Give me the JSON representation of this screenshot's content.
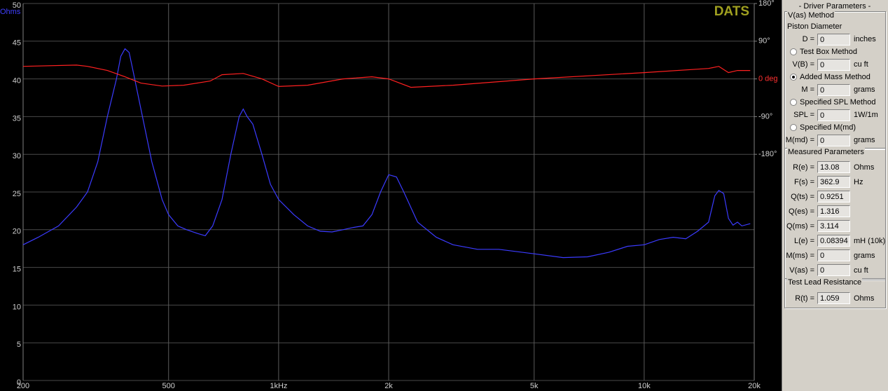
{
  "chart_data": {
    "type": "line",
    "watermark": "DATS",
    "ylabel": "Ohms",
    "log_x": true,
    "grid": true,
    "xlim": [
      200,
      20000
    ],
    "xticks": [
      200,
      500,
      {
        "value": 1000,
        "label": "1kHz"
      },
      {
        "value": 2000,
        "label": "2k"
      },
      {
        "value": 5000,
        "label": "5k"
      },
      {
        "value": 10000,
        "label": "10k"
      },
      {
        "value": 20000,
        "label": "20k"
      }
    ],
    "ylim": [
      0,
      50
    ],
    "yticks": [
      0,
      5,
      10,
      15,
      20,
      25,
      30,
      35,
      40,
      45,
      50
    ],
    "y2lim": [
      -720,
      180
    ],
    "y2ticks": [
      {
        "value": 180,
        "label": "180°"
      },
      {
        "value": 90,
        "label": "90°"
      },
      {
        "value": 0,
        "label": "0 deg",
        "color": "#ff3030"
      },
      {
        "value": -90,
        "label": "-90°"
      },
      {
        "value": -180,
        "label": "-180°"
      }
    ],
    "series": [
      {
        "color": "#3b3bff",
        "axis": "y",
        "x": [
          200,
          220,
          250,
          280,
          300,
          320,
          340,
          360,
          370,
          380,
          390,
          400,
          420,
          450,
          480,
          500,
          530,
          560,
          600,
          630,
          660,
          700,
          740,
          780,
          800,
          820,
          850,
          900,
          950,
          1000,
          1100,
          1200,
          1300,
          1400,
          1500,
          1600,
          1700,
          1800,
          1900,
          2000,
          2100,
          2200,
          2400,
          2700,
          3000,
          3500,
          4000,
          5000,
          6000,
          7000,
          8000,
          9000,
          10000,
          11000,
          12000,
          13000,
          14000,
          15000,
          15600,
          16000,
          16500,
          17000,
          17500,
          18000,
          18500,
          19500
        ],
        "values": [
          18,
          19,
          20.5,
          23,
          25,
          29,
          35,
          40,
          43,
          44,
          43.5,
          41,
          36,
          29,
          24,
          22,
          20.5,
          20,
          19.5,
          19.2,
          20.5,
          24,
          30,
          35,
          36,
          35,
          34,
          30,
          26,
          24,
          22,
          20.5,
          19.8,
          19.7,
          20,
          20.3,
          20.5,
          22,
          25,
          27.3,
          27,
          25,
          21,
          19,
          18,
          17.4,
          17.4,
          16.8,
          16.3,
          16.4,
          17,
          17.8,
          18,
          18.7,
          19,
          18.8,
          19.8,
          21,
          24.5,
          25.2,
          24.8,
          21.5,
          20.6,
          21,
          20.5,
          20.8
        ]
      },
      {
        "color": "#ff2020",
        "axis": "y2",
        "x": [
          200,
          280,
          300,
          340,
          380,
          420,
          480,
          550,
          650,
          700,
          800,
          900,
          1000,
          1200,
          1500,
          1800,
          2000,
          2300,
          3000,
          5000,
          10000,
          15000,
          16000,
          17000,
          18000,
          19500
        ],
        "values": [
          30,
          33,
          30,
          20,
          5,
          -10,
          -17,
          -15,
          -5,
          10,
          13,
          0,
          -18,
          -15,
          0,
          5,
          0,
          -20,
          -15,
          0,
          15,
          25,
          30,
          15,
          20,
          20
        ]
      }
    ]
  },
  "panel": {
    "title": "- Driver Parameters -",
    "sections": [
      {
        "title": "V(as) Method",
        "items": [
          {
            "heading": "Piston Diameter"
          },
          {
            "label": "D =",
            "value": "0",
            "unit": "inches"
          },
          {
            "radio": "Test Box Method",
            "checked": false
          },
          {
            "label": "V(B) =",
            "value": "0",
            "unit": "cu ft"
          },
          {
            "radio": "Added Mass Method",
            "checked": true
          },
          {
            "label": "M =",
            "value": "0",
            "unit": "grams"
          },
          {
            "radio": "Specified SPL Method",
            "checked": false
          },
          {
            "label": "SPL =",
            "value": "0",
            "unit": "1W/1m"
          },
          {
            "radio": "Specified M(md)",
            "checked": false
          },
          {
            "label": "M(md) =",
            "value": "0",
            "unit": "grams"
          }
        ]
      },
      {
        "title": "Measured Parameters",
        "items": [
          {
            "label": "R(e) =",
            "value": "13.08",
            "unit": "Ohms"
          },
          {
            "label": "F(s) =",
            "value": "362.9",
            "unit": "Hz"
          },
          {
            "label": "Q(ts) =",
            "value": "0.9251"
          },
          {
            "label": "Q(es) =",
            "value": "1.316"
          },
          {
            "label": "Q(ms) =",
            "value": "3.114"
          },
          {
            "label": "L(e) =",
            "value": "0.08394",
            "unit": "mH (10k)"
          },
          {
            "label": "M(ms) =",
            "value": "0",
            "unit": "grams"
          },
          {
            "label": "V(as) =",
            "value": "0",
            "unit": "cu ft"
          }
        ]
      },
      {
        "title": "Test Lead Resistance",
        "items": [
          {
            "label": "R(t) =",
            "value": "1.059",
            "unit": "Ohms"
          }
        ]
      }
    ]
  }
}
